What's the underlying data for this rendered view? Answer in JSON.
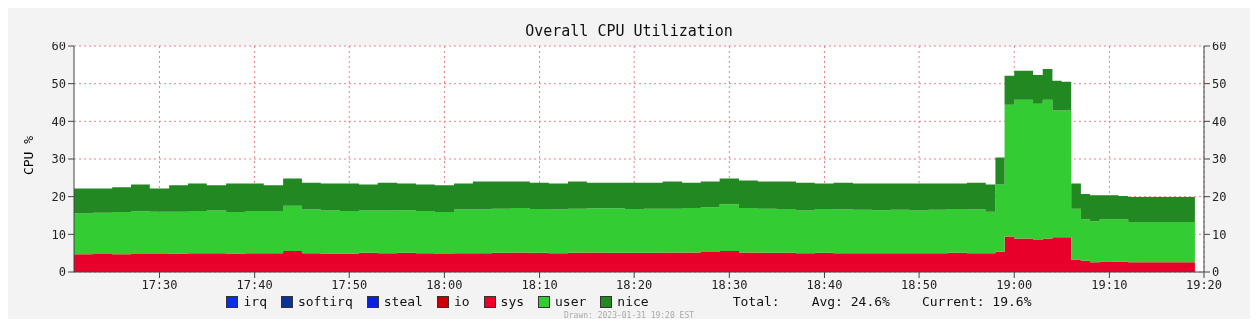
{
  "chart_data": {
    "type": "area",
    "title": "Overall CPU Utilization",
    "ylabel": "CPU %",
    "stacked": true,
    "grid": true,
    "legend": "bottom",
    "annotations": [
      "Total:",
      "Avg: 24.6%",
      "Current: 19.6%",
      "Drawn: 2023-01-31 19:20 EST"
    ],
    "xlim": [
      17.35,
      19.333
    ],
    "xticks": [
      {
        "value": 17.5,
        "label": "17:30"
      },
      {
        "value": 17.667,
        "label": "17:40"
      },
      {
        "value": 17.833,
        "label": "17:50"
      },
      {
        "value": 18,
        "label": "18:00"
      },
      {
        "value": 18.167,
        "label": "18:10"
      },
      {
        "value": 18.333,
        "label": "18:20"
      },
      {
        "value": 18.5,
        "label": "18:30"
      },
      {
        "value": 18.667,
        "label": "18:40"
      },
      {
        "value": 18.833,
        "label": "18:50"
      },
      {
        "value": 19,
        "label": "19:00"
      },
      {
        "value": 19.167,
        "label": "19:10"
      },
      {
        "value": 19.333,
        "label": "19:20"
      }
    ],
    "ylim": [
      0,
      60
    ],
    "yticks": [
      0,
      10,
      20,
      30,
      40,
      50,
      60
    ],
    "y2lim": [
      0,
      60
    ],
    "y2ticks": [
      0,
      10,
      20,
      30,
      40,
      50,
      60
    ],
    "x": [
      17.35,
      17.383,
      17.417,
      17.45,
      17.483,
      17.517,
      17.55,
      17.583,
      17.617,
      17.65,
      17.683,
      17.717,
      17.75,
      17.783,
      17.817,
      17.85,
      17.883,
      17.917,
      17.95,
      17.983,
      18.017,
      18.05,
      18.083,
      18.117,
      18.15,
      18.183,
      18.217,
      18.25,
      18.283,
      18.317,
      18.35,
      18.383,
      18.417,
      18.45,
      18.483,
      18.517,
      18.55,
      18.583,
      18.617,
      18.65,
      18.683,
      18.717,
      18.75,
      18.783,
      18.817,
      18.85,
      18.883,
      18.917,
      18.95,
      18.967,
      18.983,
      19,
      19.017,
      19.033,
      19.05,
      19.067,
      19.083,
      19.1,
      19.117,
      19.133,
      19.15,
      19.167,
      19.183,
      19.2,
      19.217,
      19.233,
      19.25,
      19.267,
      19.283,
      19.3,
      19.317
    ],
    "series": [
      {
        "name": "irq",
        "color": "#0a2ee6",
        "values": [
          null,
          null,
          null,
          null,
          null,
          null,
          null,
          null,
          null,
          null,
          null,
          null,
          null,
          null,
          null,
          null,
          null,
          null,
          null,
          null,
          null,
          null,
          null,
          null,
          null,
          null,
          null,
          null,
          null,
          null,
          null,
          null,
          null,
          null,
          null,
          null,
          null,
          null,
          null,
          null,
          null,
          null,
          null,
          null,
          null,
          null,
          null,
          null,
          null,
          null,
          null,
          null,
          null,
          null,
          null,
          null,
          null,
          null,
          null,
          null,
          null,
          null,
          null,
          null,
          null,
          null,
          null,
          null,
          null,
          null,
          null
        ]
      },
      {
        "name": "softirq",
        "color": "#0a3399",
        "values": [
          null,
          null,
          null,
          null,
          null,
          null,
          null,
          null,
          null,
          null,
          null,
          null,
          null,
          null,
          null,
          null,
          null,
          null,
          null,
          null,
          null,
          null,
          null,
          null,
          null,
          null,
          null,
          null,
          null,
          null,
          null,
          null,
          null,
          null,
          null,
          null,
          null,
          null,
          null,
          null,
          null,
          null,
          null,
          null,
          null,
          null,
          null,
          null,
          null,
          null,
          null,
          null,
          null,
          null,
          null,
          null,
          null,
          null,
          null,
          null,
          null,
          null,
          null,
          null,
          null,
          null,
          null,
          null,
          null,
          null,
          null
        ]
      },
      {
        "name": "steal",
        "color": "#0a22dd",
        "values": [
          null,
          null,
          null,
          null,
          null,
          null,
          null,
          null,
          null,
          null,
          null,
          null,
          null,
          null,
          null,
          null,
          null,
          null,
          null,
          null,
          null,
          null,
          null,
          null,
          null,
          null,
          null,
          null,
          null,
          null,
          null,
          null,
          null,
          null,
          null,
          null,
          null,
          null,
          null,
          null,
          null,
          null,
          null,
          null,
          null,
          null,
          null,
          null,
          null,
          null,
          null,
          null,
          null,
          null,
          null,
          null,
          null,
          null,
          null,
          null,
          null,
          null,
          null,
          null,
          null,
          null,
          null,
          null,
          null,
          null,
          null
        ]
      },
      {
        "name": "io",
        "color": "#c80000",
        "values": [
          null,
          null,
          null,
          null,
          null,
          null,
          null,
          null,
          null,
          null,
          null,
          null,
          null,
          null,
          null,
          null,
          null,
          null,
          null,
          null,
          null,
          null,
          null,
          null,
          null,
          null,
          null,
          null,
          null,
          null,
          null,
          null,
          null,
          null,
          null,
          null,
          null,
          null,
          null,
          null,
          null,
          null,
          null,
          null,
          null,
          null,
          null,
          null,
          null,
          null,
          null,
          null,
          null,
          null,
          null,
          null,
          null,
          null,
          null,
          null,
          null,
          null,
          null,
          null,
          null,
          null,
          null,
          null,
          null,
          null,
          null
        ]
      },
      {
        "name": "sys",
        "color": "#e8002a",
        "values": [
          4.7,
          4.8,
          4.7,
          4.8,
          4.8,
          4.9,
          5.0,
          5.0,
          4.9,
          5.0,
          5.0,
          5.6,
          5.0,
          4.9,
          4.9,
          5.1,
          5.0,
          5.1,
          5.0,
          4.8,
          5.0,
          5.0,
          5.1,
          5.2,
          5.1,
          5.0,
          5.1,
          5.2,
          5.1,
          5.1,
          5.1,
          5.2,
          5.2,
          5.3,
          5.6,
          5.2,
          5.1,
          5.1,
          5.0,
          5.1,
          5.0,
          5.0,
          5.0,
          5.0,
          5.0,
          5.0,
          5.1,
          5.0,
          5.0,
          5.4,
          9.4,
          8.9,
          8.9,
          8.5,
          8.9,
          9.2,
          9.2,
          3.3,
          3.0,
          2.6,
          2.8,
          2.8,
          2.8,
          2.6,
          2.6,
          2.6,
          2.6,
          2.6,
          2.6,
          2.6,
          2.8
        ]
      },
      {
        "name": "user",
        "color": "#33cc33",
        "values": [
          10.8,
          10.9,
          11.2,
          11.3,
          11.2,
          11.1,
          11.2,
          11.3,
          11.0,
          11.2,
          11.2,
          12.0,
          11.6,
          11.4,
          11.3,
          11.2,
          11.3,
          11.3,
          11.2,
          11.1,
          11.6,
          11.6,
          11.7,
          11.8,
          11.6,
          11.6,
          11.7,
          11.7,
          11.8,
          11.6,
          11.7,
          11.6,
          11.8,
          11.9,
          12.4,
          11.8,
          11.7,
          11.6,
          11.3,
          11.6,
          11.6,
          11.5,
          11.4,
          11.5,
          11.3,
          11.5,
          11.6,
          11.6,
          11.0,
          17.8,
          35.0,
          36.8,
          36.8,
          36.2,
          36.8,
          33.7,
          33.7,
          13.5,
          11.0,
          10.9,
          11.2,
          11.2,
          11.2,
          10.7,
          10.7,
          10.7,
          10.7,
          10.7,
          10.7,
          10.7,
          10.5
        ]
      },
      {
        "name": "nice",
        "color": "#228822",
        "values": [
          6.7,
          6.5,
          6.6,
          7.1,
          6.2,
          7.0,
          7.3,
          6.7,
          7.6,
          7.3,
          6.8,
          7.2,
          7.1,
          7.2,
          7.3,
          6.9,
          7.4,
          7.1,
          7.0,
          7.1,
          6.9,
          7.4,
          7.2,
          7.0,
          7.0,
          6.9,
          7.2,
          6.8,
          6.8,
          7.0,
          6.9,
          7.2,
          6.7,
          6.8,
          6.8,
          7.3,
          7.2,
          7.3,
          7.4,
          6.8,
          7.1,
          7.0,
          7.1,
          7.0,
          7.2,
          7.0,
          6.8,
          7.1,
          7.2,
          7.2,
          7.7,
          7.7,
          7.7,
          7.6,
          8.2,
          7.9,
          7.6,
          6.7,
          6.7,
          6.9,
          6.4,
          6.4,
          6.2,
          6.6,
          6.6,
          6.6,
          6.6,
          6.6,
          6.6,
          6.6,
          6.6
        ]
      }
    ]
  }
}
